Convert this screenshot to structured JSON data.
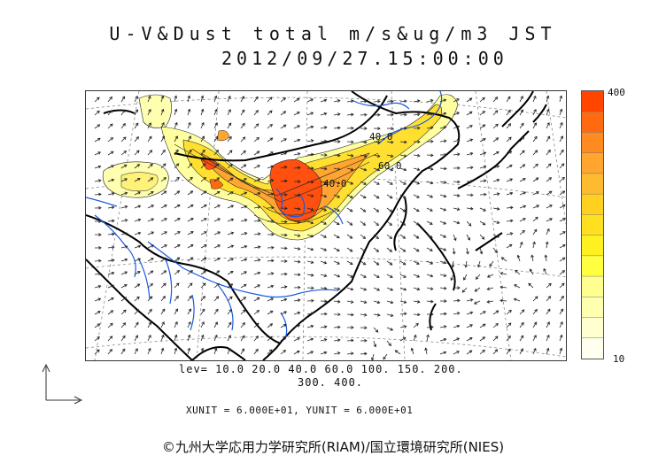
{
  "title": {
    "line1": "U-V&Dust total m/s&ug/m3 JST",
    "line2": "2012/09/27.15:00:00"
  },
  "colorbar": {
    "max_label": "400",
    "min_label": "10",
    "colors": [
      "#ff4500",
      "#ff6a10",
      "#ff8a20",
      "#ffa530",
      "#ffbb30",
      "#ffd020",
      "#ffe020",
      "#fff020",
      "#ffff40",
      "#ffff90",
      "#ffffb0",
      "#ffffd0",
      "#fffff0"
    ]
  },
  "levels": {
    "line1": "lev= 10.0 20.0 40.0 60.0 100. 150. 200.",
    "line2": "300. 400."
  },
  "units": "XUNIT = 6.000E+01, YUNIT = 6.000E+01",
  "contour_labels": [
    "40.0",
    "60.0",
    "40.0"
  ],
  "credit": "©九州大学応用力学研究所(RIAM)/国立環境研究所(NIES)"
}
